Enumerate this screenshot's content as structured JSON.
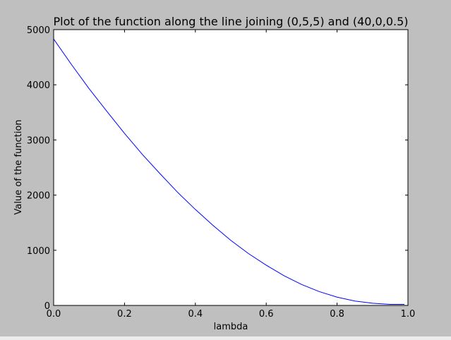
{
  "figure": {
    "background": "#bfbfbf",
    "axes_background": "#ffffff"
  },
  "chart_data": {
    "type": "line",
    "title": "Plot of the function along the line joining (0,5,5) and (40,0,0.5)",
    "xlabel": "lambda",
    "ylabel": "Value of the function",
    "xlim": [
      0.0,
      1.0
    ],
    "ylim": [
      0,
      5000
    ],
    "xticks": [
      0.0,
      0.2,
      0.4,
      0.6,
      0.8,
      1.0
    ],
    "xtick_labels": [
      "0.0",
      "0.2",
      "0.4",
      "0.6",
      "0.8",
      "1.0"
    ],
    "yticks": [
      0,
      1000,
      2000,
      3000,
      4000,
      5000
    ],
    "ytick_labels": [
      "0",
      "1000",
      "2000",
      "3000",
      "4000",
      "5000"
    ],
    "grid": false,
    "legend": "none",
    "series": [
      {
        "color": "#0000ff",
        "x": [
          0.0,
          0.05,
          0.1,
          0.15,
          0.2,
          0.25,
          0.3,
          0.35,
          0.4,
          0.45,
          0.5,
          0.55,
          0.6,
          0.65,
          0.7,
          0.75,
          0.8,
          0.85,
          0.9,
          0.95,
          0.99
        ],
        "y": [
          4830,
          4370,
          3930,
          3520,
          3120,
          2740,
          2390,
          2050,
          1740,
          1450,
          1180,
          940,
          730,
          540,
          380,
          250,
          150,
          80,
          40,
          20,
          20
        ]
      }
    ]
  }
}
